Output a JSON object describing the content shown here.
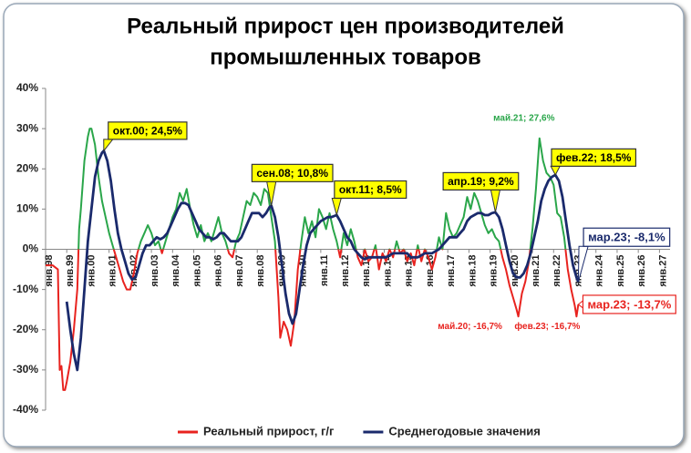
{
  "chart_data": {
    "type": "line",
    "title": [
      "Реальный прирост цен производителей",
      "промышленных товаров"
    ],
    "xlim": [
      0,
      354
    ],
    "xticks": [
      {
        "value": 0,
        "label": "янв.98"
      },
      {
        "value": 12,
        "label": "янв.99"
      },
      {
        "value": 24,
        "label": "янв.00"
      },
      {
        "value": 36,
        "label": "янв.01"
      },
      {
        "value": 48,
        "label": "янв.02"
      },
      {
        "value": 60,
        "label": "янв.03"
      },
      {
        "value": 72,
        "label": "янв.04"
      },
      {
        "value": 84,
        "label": "янв.05"
      },
      {
        "value": 96,
        "label": "янв.06"
      },
      {
        "value": 108,
        "label": "янв.07"
      },
      {
        "value": 120,
        "label": "янв.08"
      },
      {
        "value": 132,
        "label": "янв.09"
      },
      {
        "value": 144,
        "label": "янв.10"
      },
      {
        "value": 156,
        "label": "янв.11"
      },
      {
        "value": 168,
        "label": "янв.12"
      },
      {
        "value": 180,
        "label": "янв.13"
      },
      {
        "value": 192,
        "label": "янв.14"
      },
      {
        "value": 204,
        "label": "янв.15"
      },
      {
        "value": 216,
        "label": "янв.16"
      },
      {
        "value": 228,
        "label": "янв.17"
      },
      {
        "value": 240,
        "label": "янв.18"
      },
      {
        "value": 252,
        "label": "янв.19"
      },
      {
        "value": 264,
        "label": "янв.20"
      },
      {
        "value": 276,
        "label": "янв.21"
      },
      {
        "value": 288,
        "label": "янв.22"
      },
      {
        "value": 300,
        "label": "янв.23"
      },
      {
        "value": 312,
        "label": "янв.24"
      },
      {
        "value": 324,
        "label": "янв.25"
      },
      {
        "value": 336,
        "label": "янв.26"
      },
      {
        "value": 348,
        "label": "янв.27"
      }
    ],
    "ylim": [
      -40,
      40
    ],
    "yticks": [
      {
        "value": 40,
        "label": "40%"
      },
      {
        "value": 30,
        "label": "30%"
      },
      {
        "value": 20,
        "label": "20%"
      },
      {
        "value": 10,
        "label": "10%"
      },
      {
        "value": 0,
        "label": "0%"
      },
      {
        "value": -10,
        "label": "-10%"
      },
      {
        "value": -20,
        "label": "-20%"
      },
      {
        "value": -30,
        "label": "-30%"
      },
      {
        "value": -40,
        "label": "-40%"
      }
    ],
    "grid": false,
    "series": [
      {
        "name": "Реальный прирост, г/г",
        "color": "#e8231f",
        "positive_color": "#2aa64a",
        "x": [
          0,
          4,
          7,
          8,
          9,
          10,
          11,
          12,
          14,
          16,
          18,
          19,
          20,
          22,
          24,
          25,
          26,
          28,
          30,
          32,
          34,
          36,
          38,
          40,
          42,
          44,
          46,
          48,
          50,
          52,
          54,
          56,
          58,
          60,
          62,
          64,
          66,
          68,
          70,
          72,
          74,
          76,
          78,
          80,
          82,
          84,
          86,
          88,
          90,
          92,
          94,
          96,
          98,
          100,
          102,
          104,
          106,
          108,
          110,
          112,
          114,
          116,
          118,
          120,
          122,
          124,
          126,
          128,
          130,
          132,
          133,
          135,
          137,
          139,
          141,
          143,
          145,
          147,
          149,
          151,
          153,
          155,
          157,
          159,
          161,
          163,
          165,
          167,
          169,
          171,
          173,
          175,
          177,
          179,
          181,
          183,
          185,
          187,
          189,
          191,
          193,
          195,
          197,
          199,
          201,
          203,
          205,
          207,
          209,
          211,
          213,
          215,
          217,
          219,
          221,
          223,
          225,
          227,
          229,
          231,
          233,
          235,
          237,
          239,
          241,
          243,
          245,
          247,
          249,
          251,
          253,
          255,
          257,
          259,
          261,
          263,
          265,
          267,
          268,
          270,
          272,
          274,
          276,
          278,
          280,
          282,
          284,
          286,
          288,
          290,
          292,
          294,
          296,
          298,
          300,
          301,
          302
        ],
        "values": [
          -4,
          -4,
          -5,
          -30,
          -29,
          -35,
          -35,
          -33,
          -28,
          -20,
          -10,
          5,
          10,
          22,
          28,
          30,
          30,
          26,
          18,
          12,
          8,
          4,
          1,
          -2,
          -5,
          -8,
          -10,
          -10,
          -6,
          -1,
          2,
          4,
          6,
          4,
          1,
          2,
          -1,
          2,
          5,
          8,
          10,
          14,
          12,
          15,
          10,
          6,
          3,
          6,
          2,
          4,
          2,
          5,
          8,
          4,
          2,
          -1,
          -2,
          2,
          4,
          8,
          12,
          11,
          14,
          13,
          11,
          15,
          14,
          8,
          2,
          -12,
          -22,
          -18,
          -20,
          -24,
          -18,
          -5,
          2,
          8,
          4,
          7,
          3,
          10,
          8,
          5,
          9,
          5,
          2,
          -2,
          4,
          1,
          5,
          2,
          -2,
          -4,
          0,
          -3,
          -2,
          1,
          -5,
          -1,
          -3,
          0,
          -2,
          2,
          -1,
          0,
          -3,
          -1,
          -4,
          1,
          -3,
          0,
          -2,
          -5,
          -2,
          3,
          0,
          9,
          5,
          3,
          4,
          6,
          8,
          13,
          10,
          14,
          12,
          9,
          6,
          4,
          5,
          3,
          2,
          -2,
          -5,
          -9,
          -12,
          -15,
          -16.7,
          -11,
          -8,
          -3,
          5,
          15,
          27.6,
          22,
          19,
          18,
          16,
          9,
          8,
          3,
          -5,
          -10,
          -14,
          -16.7,
          -13.7
        ]
      },
      {
        "name": "Среднегодовые значения",
        "color": "#1a2a6c",
        "x": [
          12,
          14,
          16,
          18,
          20,
          22,
          24,
          26,
          28,
          30,
          32,
          33,
          35,
          37,
          39,
          41,
          43,
          45,
          47,
          49,
          51,
          53,
          55,
          57,
          59,
          61,
          63,
          65,
          67,
          69,
          71,
          73,
          75,
          77,
          79,
          81,
          83,
          85,
          87,
          89,
          91,
          93,
          95,
          97,
          99,
          101,
          103,
          105,
          107,
          109,
          111,
          113,
          115,
          117,
          119,
          121,
          123,
          125,
          127,
          128,
          130,
          132,
          134,
          136,
          138,
          140,
          142,
          144,
          146,
          148,
          150,
          152,
          154,
          156,
          158,
          160,
          162,
          165,
          167,
          169,
          171,
          173,
          175,
          177,
          179,
          181,
          183,
          185,
          187,
          189,
          191,
          193,
          195,
          197,
          199,
          201,
          203,
          205,
          207,
          209,
          211,
          213,
          215,
          217,
          219,
          221,
          223,
          225,
          227,
          229,
          231,
          233,
          235,
          237,
          239,
          241,
          243,
          245,
          247,
          249,
          251,
          253,
          255,
          257,
          259,
          261,
          263,
          265,
          267,
          269,
          271,
          273,
          275,
          277,
          279,
          281,
          283,
          285,
          287,
          289,
          291,
          293,
          295,
          297,
          299,
          301,
          302
        ],
        "values": [
          -13,
          -20,
          -26,
          -30,
          -22,
          -10,
          2,
          10,
          18,
          22,
          24,
          24.5,
          22,
          17,
          10,
          4,
          0,
          -3,
          -6,
          -7.5,
          -7,
          -4,
          -1,
          1,
          1,
          2,
          3,
          2.5,
          3,
          4,
          6,
          8,
          10,
          11.5,
          11.5,
          11,
          9,
          7,
          5,
          4,
          3,
          3,
          2.5,
          3,
          4,
          4,
          3,
          2,
          2,
          2,
          3,
          5,
          7,
          9,
          9,
          9,
          8,
          9,
          10.5,
          10.8,
          8,
          3,
          -4,
          -11,
          -16,
          -18.5,
          -16,
          -10,
          -4,
          1,
          4,
          5,
          6,
          7,
          7.5,
          8,
          8,
          8.5,
          7,
          5,
          3,
          2,
          0,
          -1,
          -2,
          -2.5,
          -2,
          -2,
          -2,
          -2,
          -2,
          -2,
          -1.5,
          -1,
          -1,
          -1,
          -1,
          -1,
          -2,
          -2,
          -2,
          -1.5,
          -1,
          -1,
          -1,
          -0.5,
          0,
          1,
          2,
          3,
          3,
          3,
          4,
          5,
          7,
          8,
          8.5,
          9,
          9,
          8.5,
          8.5,
          9,
          9.2,
          8,
          5,
          1,
          -3,
          -6,
          -7,
          -7,
          -6,
          -4,
          -1,
          3,
          7,
          12,
          15,
          17,
          18,
          18.5,
          17,
          13,
          7,
          1,
          -4,
          -7,
          -8.1
        ]
      }
    ],
    "annotations": [
      {
        "text": "окт.00; 24,5%",
        "x": 33,
        "y": 24.5,
        "style": "yellow"
      },
      {
        "text": "сен.08; 10,8%",
        "x": 128,
        "y": 10.8,
        "style": "yellow"
      },
      {
        "text": "окт.11; 8,5%",
        "x": 165,
        "y": 8.5,
        "style": "yellow"
      },
      {
        "text": "апр.19; 9,2%",
        "x": 255,
        "y": 9.2,
        "style": "yellow"
      },
      {
        "text": "фев.22; 18,5%",
        "x": 289,
        "y": 18.5,
        "style": "yellow"
      },
      {
        "text": "мар.23; -8,1%",
        "x": 302,
        "y": -8.1,
        "style": "navy-box"
      },
      {
        "text": "май.21; 27,6%",
        "x": 280,
        "y": 27.6,
        "style": "green-text"
      },
      {
        "text": "май.20; -16,7%",
        "x": 268,
        "y": -16.7,
        "style": "red-text"
      },
      {
        "text": "фев.23; -16,7%",
        "x": 301,
        "y": -16.7,
        "style": "red-text"
      },
      {
        "text": "мар.23; -13,7%",
        "x": 302,
        "y": -13.7,
        "style": "red-box"
      }
    ]
  }
}
